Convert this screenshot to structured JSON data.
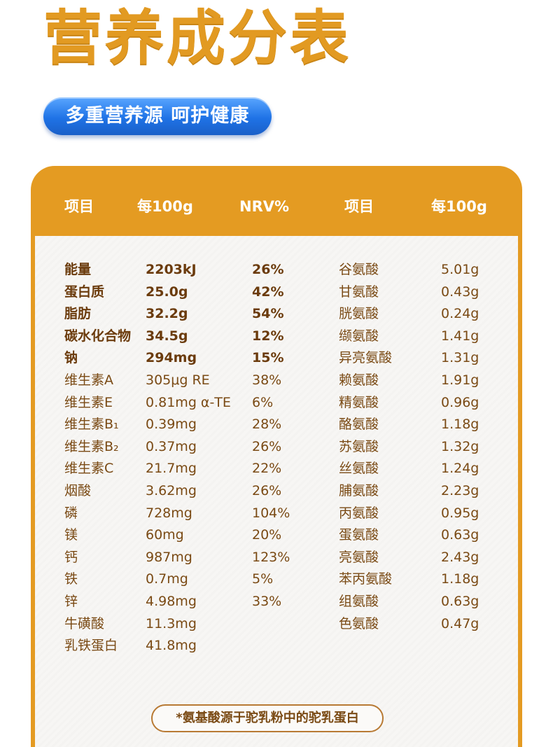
{
  "title": "营养成分表",
  "subtitle": "多重营养源 呵护健康",
  "headers": {
    "item": "项目",
    "per100g": "每100g",
    "nrv": "NRV%",
    "item2": "项目",
    "per100g2": "每100g"
  },
  "nutrients": [
    {
      "name": "能量",
      "value": "2203kJ",
      "nrv": "26%",
      "bold": true
    },
    {
      "name": "蛋白质",
      "value": "25.0g",
      "nrv": "42%",
      "bold": true
    },
    {
      "name": "脂肪",
      "value": "32.2g",
      "nrv": "54%",
      "bold": true
    },
    {
      "name": "碳水化合物",
      "value": "34.5g",
      "nrv": "12%",
      "bold": true
    },
    {
      "name": "钠",
      "value": "294mg",
      "nrv": "15%",
      "bold": true
    },
    {
      "name": "维生素A",
      "value": "305μg RE",
      "nrv": "38%",
      "bold": false
    },
    {
      "name": "维生素E",
      "value": "0.81mg α-TE",
      "nrv": "6%",
      "bold": false
    },
    {
      "name": "维生素B₁",
      "value": "0.39mg",
      "nrv": "28%",
      "bold": false
    },
    {
      "name": "维生素B₂",
      "value": "0.37mg",
      "nrv": "26%",
      "bold": false
    },
    {
      "name": "维生素C",
      "value": "21.7mg",
      "nrv": "22%",
      "bold": false
    },
    {
      "name": "烟酸",
      "value": "3.62mg",
      "nrv": "26%",
      "bold": false
    },
    {
      "name": "磷",
      "value": "728mg",
      "nrv": "104%",
      "bold": false
    },
    {
      "name": "镁",
      "value": "60mg",
      "nrv": "20%",
      "bold": false
    },
    {
      "name": "钙",
      "value": "987mg",
      "nrv": "123%",
      "bold": false
    },
    {
      "name": "铁",
      "value": "0.7mg",
      "nrv": "5%",
      "bold": false
    },
    {
      "name": "锌",
      "value": "4.98mg",
      "nrv": "33%",
      "bold": false
    },
    {
      "name": "牛磺酸",
      "value": "11.3mg",
      "nrv": "",
      "bold": false
    },
    {
      "name": "乳铁蛋白",
      "value": "41.8mg",
      "nrv": "",
      "bold": false
    }
  ],
  "amino_acids": [
    {
      "name": "谷氨酸",
      "value": "5.01g"
    },
    {
      "name": "甘氨酸",
      "value": "0.43g"
    },
    {
      "name": "胱氨酸",
      "value": "0.24g"
    },
    {
      "name": "缬氨酸",
      "value": "1.41g"
    },
    {
      "name": "异亮氨酸",
      "value": "1.31g"
    },
    {
      "name": "赖氨酸",
      "value": "1.91g"
    },
    {
      "name": "精氨酸",
      "value": "0.96g"
    },
    {
      "name": "酪氨酸",
      "value": "1.18g"
    },
    {
      "name": "苏氨酸",
      "value": "1.32g"
    },
    {
      "name": "丝氨酸",
      "value": "1.24g"
    },
    {
      "name": "脯氨酸",
      "value": "2.23g"
    },
    {
      "name": "丙氨酸",
      "value": "0.95g"
    },
    {
      "name": "蛋氨酸",
      "value": "0.63g"
    },
    {
      "name": "亮氨酸",
      "value": "2.43g"
    },
    {
      "name": "苯丙氨酸",
      "value": "1.18g"
    },
    {
      "name": "组氨酸",
      "value": "0.63g"
    },
    {
      "name": "色氨酸",
      "value": "0.47g"
    }
  ],
  "footnote": "*氨基酸源于驼乳粉中的驼乳蛋白",
  "colors": {
    "accent": "#e49b22",
    "title": "#e29a22",
    "pill": "#1f73e6",
    "text": "#7a4a14"
  }
}
